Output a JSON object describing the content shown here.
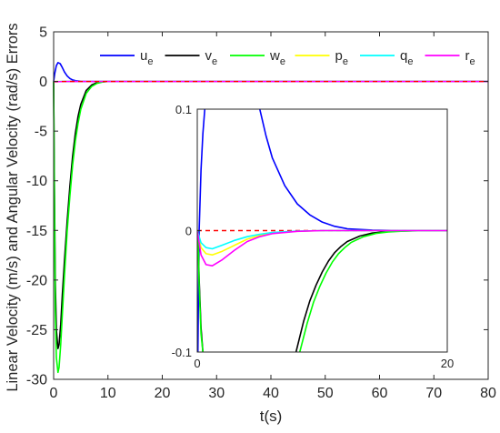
{
  "chart_data": [
    {
      "type": "line",
      "role": "main",
      "xlabel": "t(s)",
      "ylabel": "Linear Velocity (m/s) and Angular Velocity (rad/s) Errors",
      "xlim": [
        0,
        80
      ],
      "ylim": [
        -30,
        5
      ],
      "xticks": [
        0,
        10,
        20,
        30,
        40,
        50,
        60,
        70,
        80
      ],
      "yticks": [
        5,
        0,
        -5,
        -10,
        -15,
        -20,
        -25,
        -30
      ],
      "grid": false,
      "legend": {
        "placement": "top",
        "orientation": "horizontal",
        "entries": [
          {
            "base": "u",
            "sub": "e",
            "color": "#0000ff"
          },
          {
            "base": "v",
            "sub": "e",
            "color": "#000000"
          },
          {
            "base": "w",
            "sub": "e",
            "color": "#00ff00"
          },
          {
            "base": "p",
            "sub": "e",
            "color": "#ffff00"
          },
          {
            "base": "q",
            "sub": "e",
            "color": "#00ffff"
          },
          {
            "base": "r",
            "sub": "e",
            "color": "#ff00ff"
          }
        ]
      },
      "reference_line": {
        "y": 0,
        "style": "dashed",
        "color": "#ff0000"
      },
      "series": [
        {
          "name": "ue",
          "color": "#0000ff",
          "x": [
            0,
            0.2,
            0.5,
            0.8,
            1.2,
            1.6,
            2,
            2.5,
            3,
            3.5,
            4,
            5,
            6,
            7,
            8,
            10,
            80
          ],
          "y": [
            0,
            0.8,
            1.6,
            1.9,
            1.8,
            1.4,
            0.95,
            0.55,
            0.3,
            0.15,
            0.08,
            0.02,
            0.005,
            0,
            0,
            0,
            0
          ]
        },
        {
          "name": "ve",
          "color": "#000000",
          "x": [
            0,
            0.1,
            0.3,
            0.5,
            0.8,
            1,
            1.3,
            1.6,
            2,
            2.5,
            3,
            3.5,
            4,
            4.5,
            5,
            6,
            7,
            8,
            9,
            10,
            80
          ],
          "y": [
            0,
            -8,
            -20,
            -25,
            -26.9,
            -26.5,
            -24.5,
            -21.5,
            -18,
            -14,
            -10.5,
            -7.5,
            -5.2,
            -3.5,
            -2.3,
            -0.9,
            -0.35,
            -0.12,
            -0.04,
            0,
            0
          ]
        },
        {
          "name": "we",
          "color": "#00ff00",
          "x": [
            0,
            0.1,
            0.3,
            0.5,
            0.8,
            1,
            1.3,
            1.6,
            2,
            2.5,
            3,
            3.5,
            4,
            4.5,
            5,
            6,
            7,
            8,
            9,
            10,
            80
          ],
          "y": [
            0,
            -9,
            -23,
            -27.8,
            -29.3,
            -28.8,
            -26.5,
            -23.5,
            -19.5,
            -15,
            -11.5,
            -8.4,
            -6,
            -4.2,
            -2.8,
            -1.2,
            -0.5,
            -0.18,
            -0.06,
            0,
            0
          ]
        },
        {
          "name": "pe",
          "color": "#ffff00",
          "x": [
            0,
            0.3,
            1,
            2,
            3,
            5,
            80
          ],
          "y": [
            0,
            -0.02,
            -0.01,
            -0.004,
            -0.001,
            0,
            0
          ]
        },
        {
          "name": "qe",
          "color": "#00ffff",
          "x": [
            0,
            0.3,
            1,
            2,
            3,
            5,
            80
          ],
          "y": [
            0,
            -0.015,
            -0.008,
            -0.003,
            -0.001,
            0,
            0
          ]
        },
        {
          "name": "re",
          "color": "#ff00ff",
          "x": [
            0,
            0.3,
            1,
            2,
            3,
            5,
            80
          ],
          "y": [
            0,
            -0.03,
            -0.015,
            -0.005,
            -0.001,
            0,
            0
          ]
        }
      ]
    },
    {
      "type": "line",
      "role": "inset",
      "xlim": [
        0,
        20
      ],
      "ylim": [
        -0.1,
        0.1
      ],
      "xticks": [
        0,
        20
      ],
      "yticks": [
        0.1,
        0,
        -0.1
      ],
      "reference_line": {
        "y": 0,
        "style": "dashed",
        "color": "#ff0000"
      },
      "series": [
        {
          "name": "ue",
          "color": "#0000ff",
          "x": [
            0.05,
            0.15,
            0.3,
            0.45,
            0.6
          ],
          "y": [
            -0.1,
            0,
            0.05,
            0.08,
            0.1
          ]
        },
        {
          "name": "ue (decay)",
          "color": "#0000ff",
          "x": [
            5.0,
            5.5,
            6,
            7,
            8,
            9,
            10,
            11,
            12,
            14,
            16,
            18,
            20
          ],
          "y": [
            0.1,
            0.078,
            0.06,
            0.037,
            0.022,
            0.013,
            0.007,
            0.0035,
            0.0015,
            0.0004,
            0.0001,
            0,
            0
          ]
        },
        {
          "name": "ve",
          "color": "#000000",
          "x": [
            0.05,
            0.15,
            0.3,
            0.45
          ],
          "y": [
            0,
            -0.04,
            -0.08,
            -0.1
          ]
        },
        {
          "name": "ve (recovery)",
          "color": "#000000",
          "x": [
            7.9,
            8.5,
            9,
            9.5,
            10,
            10.5,
            11,
            11.5,
            12,
            13,
            14,
            15,
            16,
            18,
            20
          ],
          "y": [
            -0.1,
            -0.075,
            -0.058,
            -0.045,
            -0.034,
            -0.025,
            -0.018,
            -0.013,
            -0.009,
            -0.0045,
            -0.002,
            -0.001,
            -0.0004,
            0,
            0
          ]
        },
        {
          "name": "we",
          "color": "#00ff00",
          "x": [
            0.05,
            0.15,
            0.3,
            0.45
          ],
          "y": [
            0,
            -0.045,
            -0.085,
            -0.1
          ]
        },
        {
          "name": "we (recovery)",
          "color": "#00ff00",
          "x": [
            8.2,
            8.8,
            9.3,
            9.8,
            10.3,
            10.8,
            11.3,
            11.8,
            12.3,
            13.3,
            14.3,
            15.3,
            16.3,
            18,
            20
          ],
          "y": [
            -0.1,
            -0.076,
            -0.059,
            -0.046,
            -0.035,
            -0.026,
            -0.019,
            -0.014,
            -0.0098,
            -0.005,
            -0.0023,
            -0.0011,
            -0.0005,
            -0.0001,
            0
          ]
        },
        {
          "name": "pe",
          "color": "#ffff00",
          "x": [
            0,
            0.3,
            0.7,
            1.2,
            2,
            3,
            4,
            5,
            6,
            8,
            10,
            20
          ],
          "y": [
            0,
            -0.014,
            -0.019,
            -0.02,
            -0.017,
            -0.012,
            -0.007,
            -0.004,
            -0.002,
            -0.0005,
            0,
            0
          ]
        },
        {
          "name": "qe",
          "color": "#00ffff",
          "x": [
            0,
            0.3,
            0.7,
            1.2,
            2,
            3,
            4,
            5,
            6,
            8,
            10,
            20
          ],
          "y": [
            0,
            -0.01,
            -0.014,
            -0.015,
            -0.012,
            -0.008,
            -0.005,
            -0.003,
            -0.0015,
            -0.0004,
            0,
            0
          ]
        },
        {
          "name": "re",
          "color": "#ff00ff",
          "x": [
            0,
            0.3,
            0.7,
            1.2,
            2,
            3,
            4,
            5,
            6,
            8,
            10,
            20
          ],
          "y": [
            0,
            -0.02,
            -0.028,
            -0.029,
            -0.024,
            -0.016,
            -0.009,
            -0.005,
            -0.0025,
            -0.0006,
            0,
            0
          ]
        }
      ]
    }
  ]
}
